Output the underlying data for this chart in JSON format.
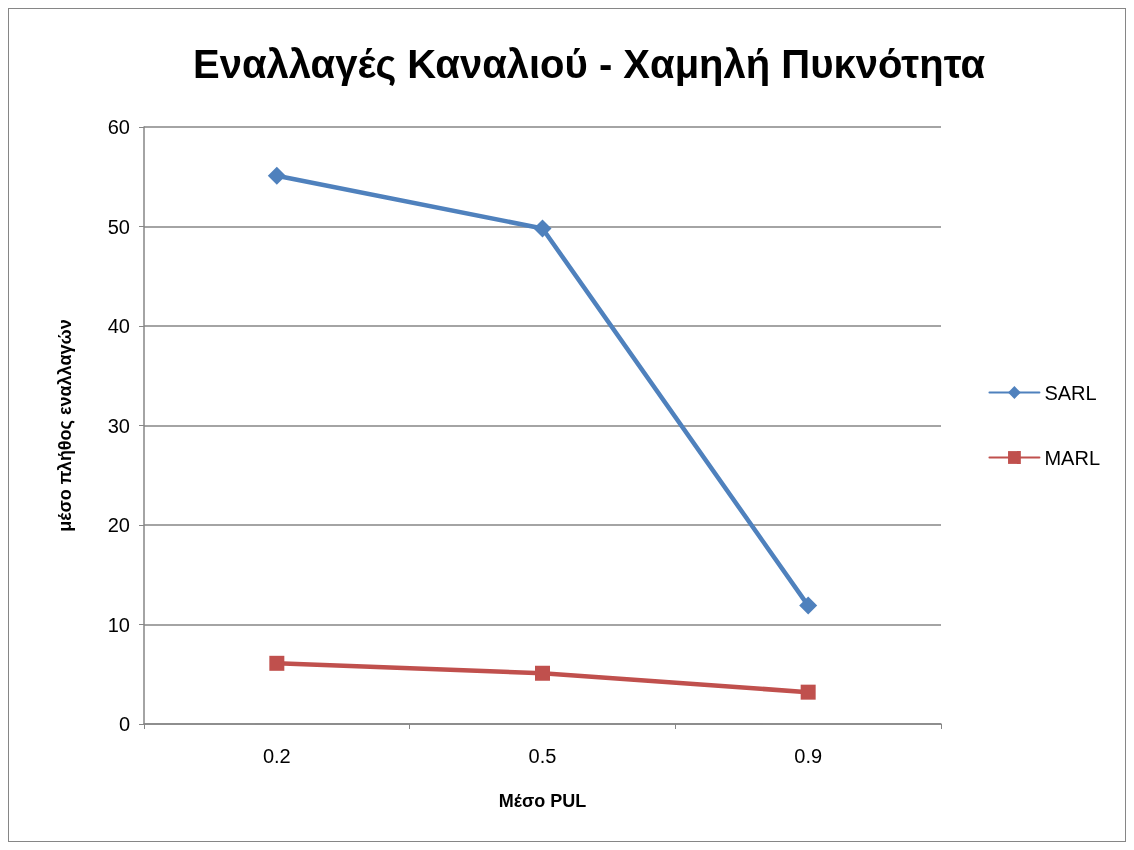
{
  "chart_data": {
    "type": "line",
    "title": "Εναλλαγές Καναλιού - Χαμηλή Πυκνότητα",
    "xlabel": "Μέσο PUL",
    "ylabel": "μέσο πλήθος εναλλαγών",
    "categories": [
      "0.2",
      "0.5",
      "0.9"
    ],
    "series": [
      {
        "name": "SARL",
        "color": "#4f81bd",
        "marker": "diamond",
        "values": [
          55.1,
          49.8,
          11.9
        ]
      },
      {
        "name": "MARL",
        "color": "#c0504d",
        "marker": "square",
        "values": [
          6.1,
          5.1,
          3.2
        ]
      }
    ],
    "ylim": [
      0,
      60
    ],
    "yticks": [
      0,
      10,
      20,
      30,
      40,
      50,
      60
    ],
    "grid": "y",
    "legend": "right",
    "line_style": "solid"
  }
}
